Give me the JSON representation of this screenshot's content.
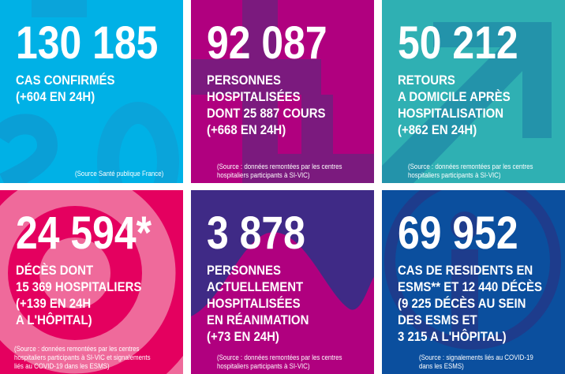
{
  "colors": {
    "cyan": "#00b1e6",
    "magenta": "#b0007f",
    "teal": "#2fb0b3",
    "pink": "#ef6a9b",
    "purple": "#3f2a86",
    "blue": "#0b4f9e"
  },
  "tiles": [
    {
      "number": "130 185",
      "lines": [
        "CAS CONFIRMÉS",
        "(+604 EN 24H)"
      ],
      "source": [
        "(Source Santé publique France)"
      ]
    },
    {
      "number": "92 087",
      "lines": [
        "PERSONNES",
        "HOSPITALISÉES",
        "DONT 25 887 COURS",
        "(+668 EN 24H)"
      ],
      "source": [
        "(Source : données remontées par les centres",
        "hospitaliers participants à SI-VIC)"
      ]
    },
    {
      "number": "50 212",
      "lines": [
        "RETOURS",
        "A DOMICILE APRÈS",
        "HOSPITALISATION",
        "(+862 EN 24H)"
      ],
      "source": [
        "(Source : données remontées par les centres",
        "hospitaliers participants à SI-VIC)"
      ]
    },
    {
      "number": "24 594*",
      "lines": [
        "DÉCÈS DONT",
        "15 369 HOSPITALIERS",
        "(+139 EN 24H",
        "A L'HÔPITAL)"
      ],
      "source": [
        "(Source : données remontées par les centres",
        "hospitaliers participants à SI-VIC et signalements",
        "liés au COVID-19 dans les ESMS)"
      ]
    },
    {
      "number": "3 878",
      "lines": [
        "PERSONNES",
        "ACTUELLEMENT",
        "HOSPITALISÉES",
        "EN RÉANIMATION",
        "(+73 EN 24H)"
      ],
      "source": [
        "(Source : données remontées par les centres",
        "hospitaliers participants à SI-VIC)"
      ]
    },
    {
      "number": "69 952",
      "lines": [
        "CAS DE RESIDENTS EN",
        "ESMS** ET 12 440 DÉCÈS",
        "(9 225 DÉCÈS AU SEIN",
        "DES ESMS ET",
        "3 215 A L'HÔPITAL)"
      ],
      "source": [
        "(Source : signalements liés au COVID-19",
        "dans les ESMS)"
      ]
    }
  ]
}
